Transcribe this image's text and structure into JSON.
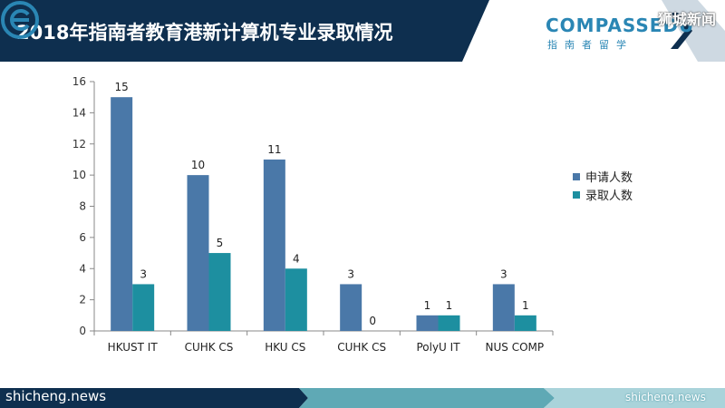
{
  "header": {
    "title": "2018年指南者教育港新计算机专业录取情况",
    "logo_text": "COMPASSEDU",
    "logo_sub": "指南者留学",
    "logo_icon": "compass-e-logo-icon",
    "corner_mark": "狮城新闻",
    "bg_color": "#0e2f4f",
    "logo_color": "#2a86b4"
  },
  "chart_data": {
    "type": "bar",
    "title": "",
    "xlabel": "",
    "ylabel": "",
    "ylim": [
      0,
      16
    ],
    "yticks": [
      0,
      2,
      4,
      6,
      8,
      10,
      12,
      14,
      16
    ],
    "categories": [
      "HKUST IT",
      "CUHK CS",
      "HKU CS",
      "CUHK CS",
      "PolyU IT",
      "NUS COMP"
    ],
    "series": [
      {
        "name": "申请人数",
        "color": "#4a78a8",
        "values": [
          15,
          10,
          11,
          3,
          1,
          3
        ]
      },
      {
        "name": "录取人数",
        "color": "#1d8fa0",
        "values": [
          3,
          5,
          4,
          0,
          1,
          1
        ]
      }
    ],
    "grid": false,
    "legend": "right",
    "data_labels": true
  },
  "footer": {
    "left_text": "shicheng.news",
    "right_text": "shicheng.news"
  }
}
